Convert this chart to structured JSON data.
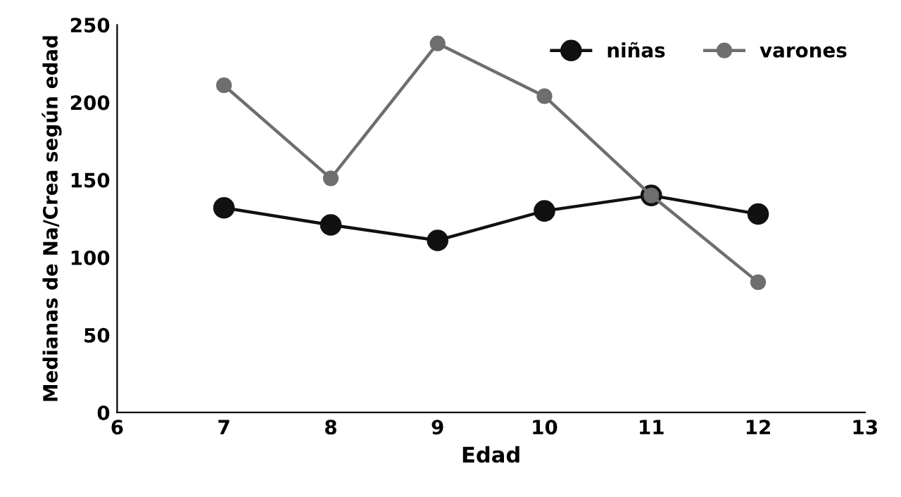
{
  "chart_data": {
    "type": "line",
    "xlabel": "Edad",
    "ylabel": "Medianas de Na/Crea según edad",
    "x": [
      7,
      8,
      9,
      10,
      11,
      12
    ],
    "series": [
      {
        "name": "niñas",
        "color": "#111111",
        "values": [
          132,
          121,
          111,
          130,
          140,
          128
        ]
      },
      {
        "name": "varones",
        "color": "#6e6e6e",
        "values": [
          211,
          151,
          238,
          204,
          140,
          84
        ]
      }
    ],
    "xlim": [
      6,
      13
    ],
    "xticks": [
      6,
      7,
      8,
      9,
      10,
      11,
      12,
      13
    ],
    "ylim": [
      0,
      250
    ],
    "yticks": [
      0,
      50,
      100,
      150,
      200,
      250
    ],
    "grid": false,
    "legend": "top right",
    "marker": "circle",
    "line_style": "solid"
  }
}
